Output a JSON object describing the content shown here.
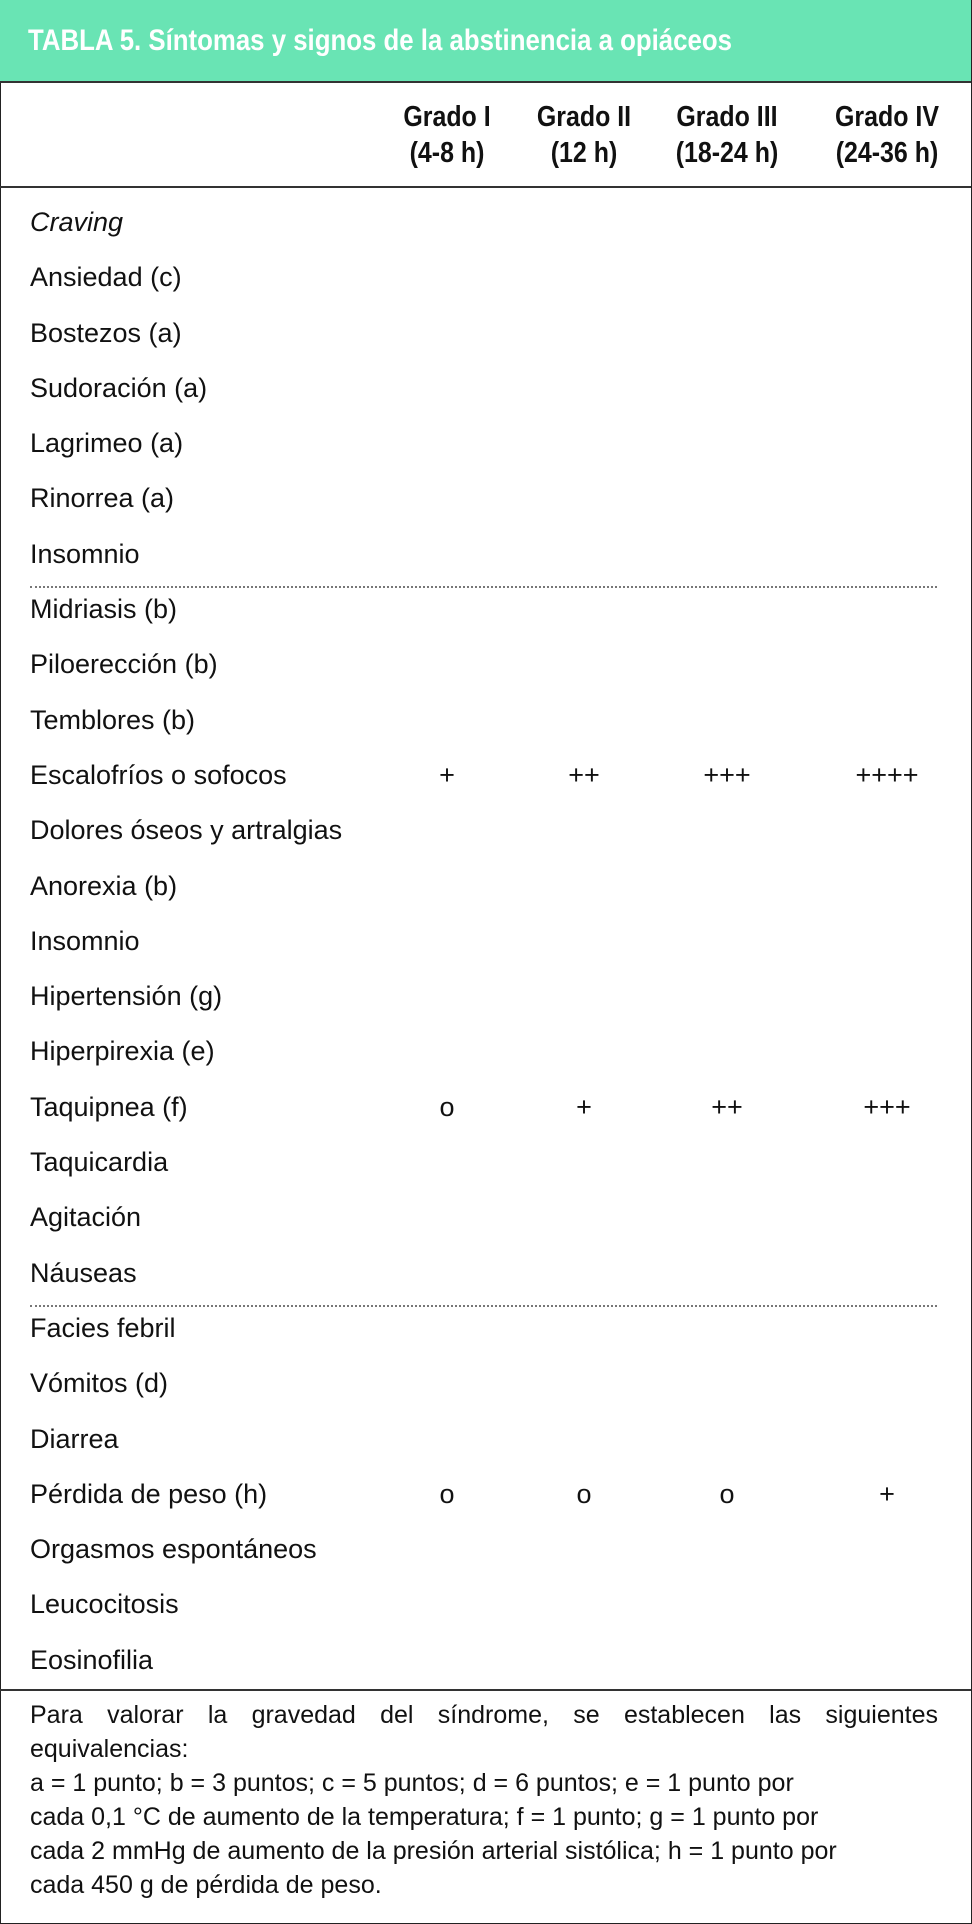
{
  "title": "TABLA 5. Síntomas y signos de la abstinencia a opiáceos",
  "header_color": "#69e4b4",
  "columns": [
    {
      "grade": "Grado I",
      "time": "(4-8 h)"
    },
    {
      "grade": "Grado II",
      "time": "(12 h)"
    },
    {
      "grade": "Grado III",
      "time": "(18-24 h)"
    },
    {
      "grade": "Grado IV",
      "time": "(24-36 h)"
    }
  ],
  "rows": [
    {
      "label": "Craving",
      "italic": true
    },
    {
      "label": "Ansiedad (c)"
    },
    {
      "label": "Bostezos (a)"
    },
    {
      "label": "Sudoración (a)"
    },
    {
      "label": "Lagrimeo (a)"
    },
    {
      "label": "Rinorrea (a)"
    },
    {
      "label": "Insomnio"
    },
    {
      "label": "Midriasis (b)"
    },
    {
      "label": "Piloerección (b)"
    },
    {
      "label": "Temblores (b)"
    },
    {
      "label": "Escalofríos o sofocos",
      "values": [
        "+",
        "++",
        "+++",
        "++++"
      ]
    },
    {
      "label": "Dolores óseos y artralgias"
    },
    {
      "label": "Anorexia (b)"
    },
    {
      "label": "Insomnio"
    },
    {
      "label": "Hipertensión (g)"
    },
    {
      "label": "Hiperpirexia (e)"
    },
    {
      "label": "Taquipnea (f)",
      "values": [
        "o",
        "+",
        "++",
        "+++"
      ]
    },
    {
      "label": "Taquicardia"
    },
    {
      "label": "Agitación"
    },
    {
      "label": "Náuseas"
    },
    {
      "label": "Facies febril"
    },
    {
      "label": "Vómitos (d)"
    },
    {
      "label": "Diarrea"
    },
    {
      "label": "Pérdida de peso (h)",
      "values": [
        "o",
        "o",
        "o",
        "+"
      ]
    },
    {
      "label": "Orgasmos espontáneos"
    },
    {
      "label": "Leucocitosis"
    },
    {
      "label": "Eosinofilia"
    }
  ],
  "footnote": {
    "line1": "Para valorar la gravedad del síndrome, se establecen las siguientes",
    "line2": "equivalencias:",
    "line3": "a = 1 punto; b = 3 puntos; c = 5 puntos; d = 6 puntos; e = 1 punto por",
    "line4": "cada 0,1 °C de aumento de la temperatura; f = 1 punto; g = 1 punto por",
    "line5": "cada 2 mmHg de aumento de la presión arterial sistólica; h = 1 punto por",
    "line6": "cada 450 g de pérdida de peso."
  }
}
